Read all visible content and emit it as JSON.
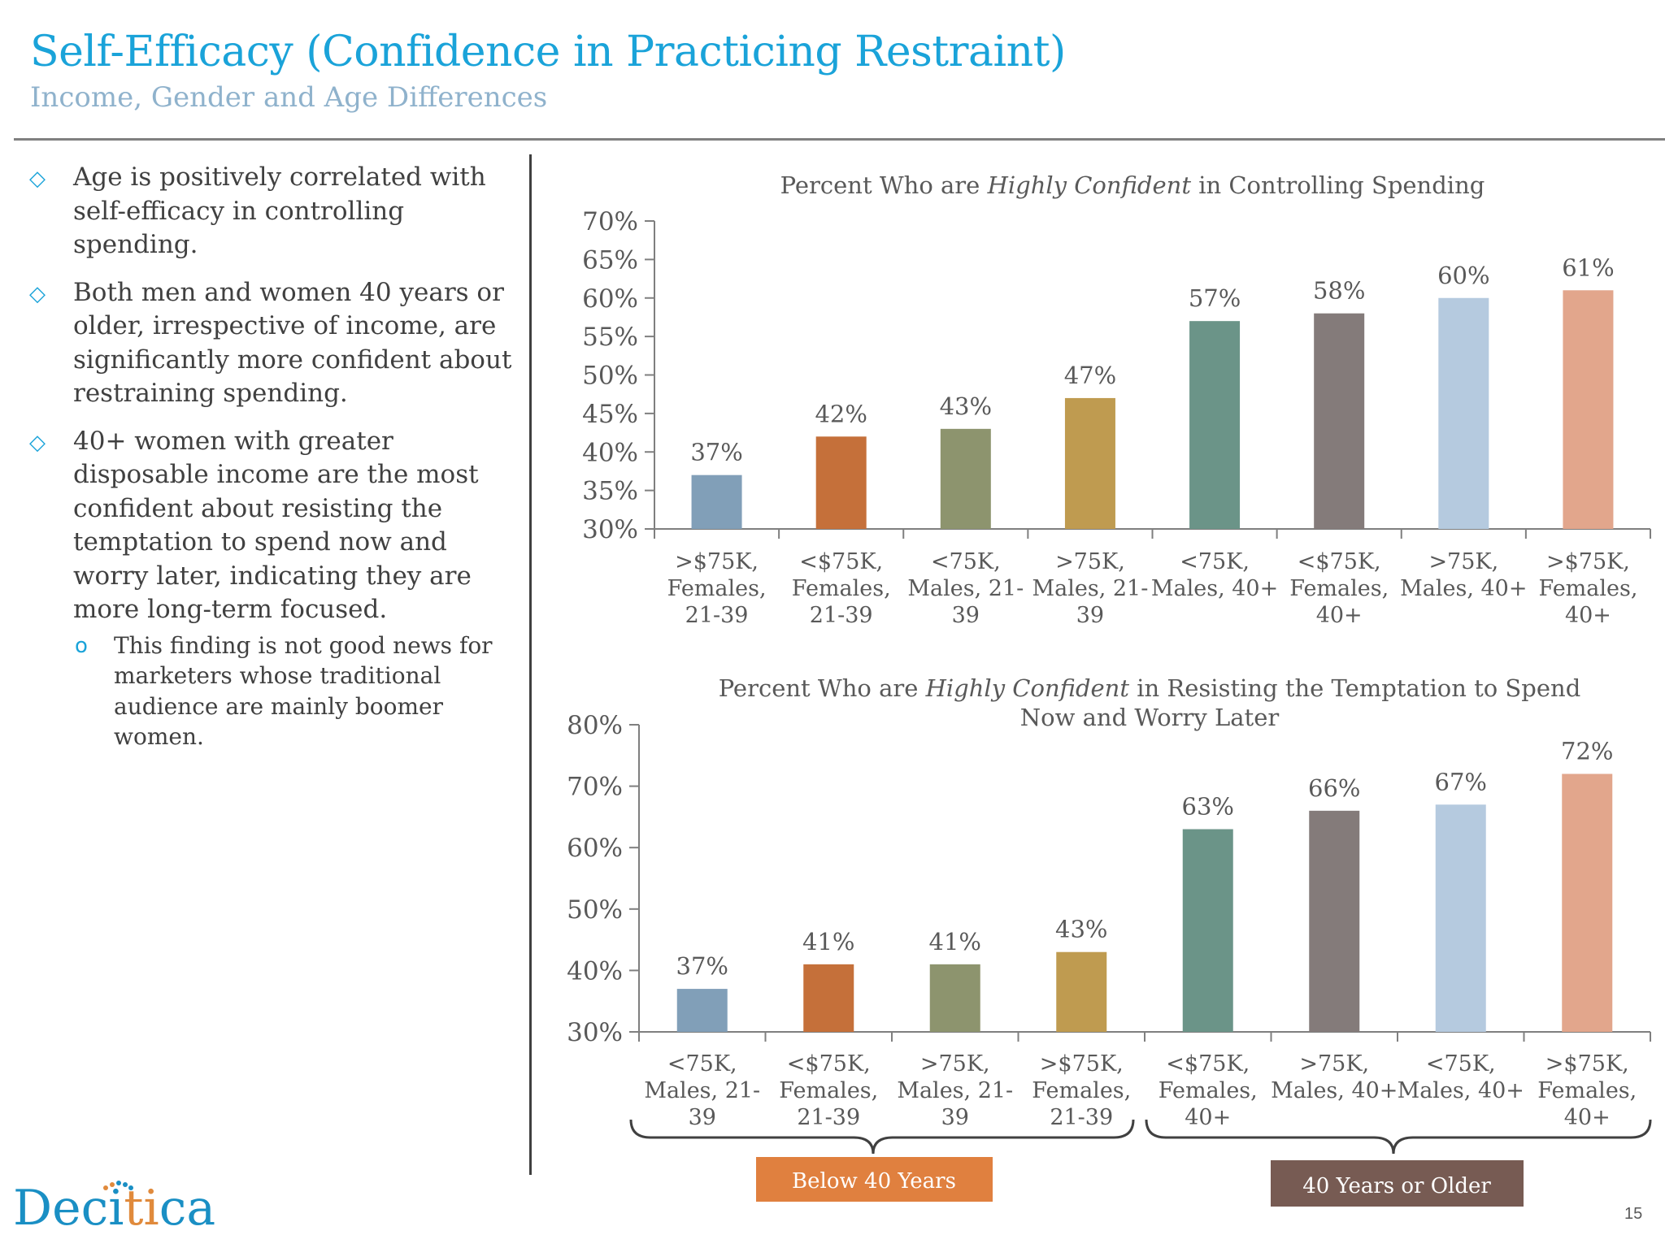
{
  "header": {
    "title": "Self-Efficacy (Confidence in Practicing Restraint)",
    "subtitle": "Income, Gender and Age Differences"
  },
  "bullets": [
    {
      "text": "Age is positively correlated with self-efficacy in controlling spending."
    },
    {
      "text": "Both men and women 40 years or older, irrespective of income, are significantly more confident about restraining spending."
    },
    {
      "text": "40+ women with greater disposable income are the most confident about resisting the temptation to spend now and worry later, indicating they are more long-term focused."
    }
  ],
  "subbullet": {
    "text": "This finding is not good news for marketers whose traditional audience are mainly boomer women."
  },
  "colors": {
    "title": "#1aa3d9",
    "subtitle": "#8fb2cc",
    "bar_colors": [
      "#819fb8",
      "#c5703a",
      "#8d946e",
      "#bf9b50",
      "#6b9488",
      "#847b7a",
      "#b5cadf",
      "#e2a68c"
    ],
    "below40_box": "#e0803f",
    "over40_box": "#775b53"
  },
  "chart_data": [
    {
      "type": "bar",
      "title_pre": "Percent Who are ",
      "title_em": "Highly Confident",
      "title_post": " in Controlling Spending",
      "categories": [
        [
          ">$75K,",
          "Females,",
          "21-39"
        ],
        [
          "<$75K,",
          "Females,",
          "21-39"
        ],
        [
          "<75K,",
          "Males, 21-",
          "39"
        ],
        [
          ">75K,",
          "Males, 21-",
          "39"
        ],
        [
          "<75K,",
          "Males, 40+"
        ],
        [
          "<$75K,",
          "Females,",
          "40+"
        ],
        [
          ">75K,",
          "Males, 40+"
        ],
        [
          ">$75K,",
          "Females,",
          "40+"
        ]
      ],
      "values": [
        37,
        42,
        43,
        47,
        57,
        58,
        60,
        61
      ],
      "value_labels": [
        "37%",
        "42%",
        "43%",
        "47%",
        "57%",
        "58%",
        "60%",
        "61%"
      ],
      "ylim": [
        30,
        70
      ],
      "yticks": [
        30,
        35,
        40,
        45,
        50,
        55,
        60,
        65,
        70
      ],
      "ytick_labels": [
        "30%",
        "35%",
        "40%",
        "45%",
        "50%",
        "55%",
        "60%",
        "65%",
        "70%"
      ],
      "xlabel": "",
      "ylabel": "",
      "grid": false,
      "legend": "none"
    },
    {
      "type": "bar",
      "title_line1_pre": "Percent Who are ",
      "title_line1_em": "Highly Confident",
      "title_line1_post": " in Resisting the Temptation to Spend",
      "title_line2": "Now and Worry Later",
      "categories": [
        [
          "<75K,",
          "Males, 21-",
          "39"
        ],
        [
          "<$75K,",
          "Females,",
          "21-39"
        ],
        [
          ">75K,",
          "Males, 21-",
          "39"
        ],
        [
          ">$75K,",
          "Females,",
          "21-39"
        ],
        [
          "<$75K,",
          "Females,",
          "40+"
        ],
        [
          ">75K,",
          "Males, 40+"
        ],
        [
          "<75K,",
          "Males, 40+"
        ],
        [
          ">$75K,",
          "Females,",
          "40+"
        ]
      ],
      "values": [
        37,
        41,
        41,
        43,
        63,
        66,
        67,
        72
      ],
      "value_labels": [
        "37%",
        "41%",
        "41%",
        "43%",
        "63%",
        "66%",
        "67%",
        "72%"
      ],
      "ylim": [
        30,
        80
      ],
      "yticks": [
        30,
        40,
        50,
        60,
        70,
        80
      ],
      "ytick_labels": [
        "30%",
        "40%",
        "50%",
        "60%",
        "70%",
        "80%"
      ],
      "xlabel": "",
      "ylabel": "",
      "grid": false,
      "legend": "none",
      "groups": [
        "Below 40 Years",
        "40 Years or Older"
      ]
    }
  ],
  "footer": {
    "logo_pre": "Deci",
    "logo_accent": "ti",
    "logo_post": "ca",
    "page_number": "15"
  }
}
